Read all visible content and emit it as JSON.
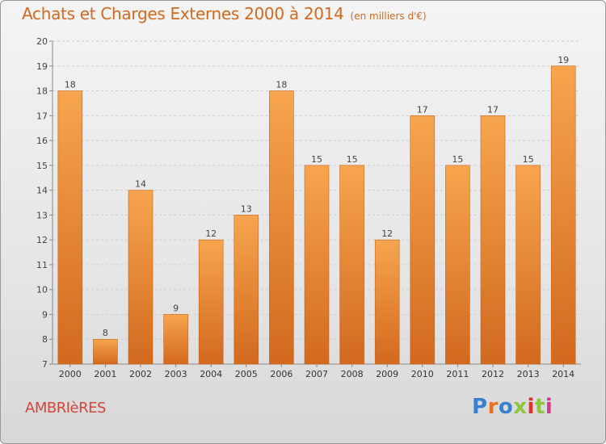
{
  "header": {
    "title": "Achats et Charges Externes 2000 à 2014",
    "subtitle": "(en milliers d'€)"
  },
  "footer": {
    "city": "AMBRIèRES",
    "logo": "Proxiti"
  },
  "colors": {
    "bar_top": "#f7a54e",
    "bar_bottom": "#d2691e",
    "bar_stroke": "#c8641a",
    "title": "#d2691e",
    "city": "#d2473a",
    "logo_letters": [
      "#3a7fd0",
      "#e8701e",
      "#3a7fd0",
      "#8cc63f",
      "#e0302a",
      "#8cc63f",
      "#d23a8c"
    ]
  },
  "chart_data": {
    "type": "bar",
    "title": "Achats et Charges Externes 2000 à 2014",
    "subtitle": "(en milliers d'€)",
    "xlabel": "",
    "ylabel": "",
    "categories": [
      "2000",
      "2001",
      "2002",
      "2003",
      "2004",
      "2005",
      "2006",
      "2007",
      "2008",
      "2009",
      "2010",
      "2011",
      "2012",
      "2013",
      "2014"
    ],
    "values": [
      18,
      8,
      14,
      9,
      12,
      13,
      18,
      15,
      15,
      12,
      17,
      15,
      17,
      15,
      19
    ],
    "ylim": [
      7,
      20
    ],
    "yticks": [
      7,
      8,
      9,
      10,
      11,
      12,
      13,
      14,
      15,
      16,
      17,
      18,
      19,
      20
    ],
    "grid": true,
    "legend": "none"
  }
}
